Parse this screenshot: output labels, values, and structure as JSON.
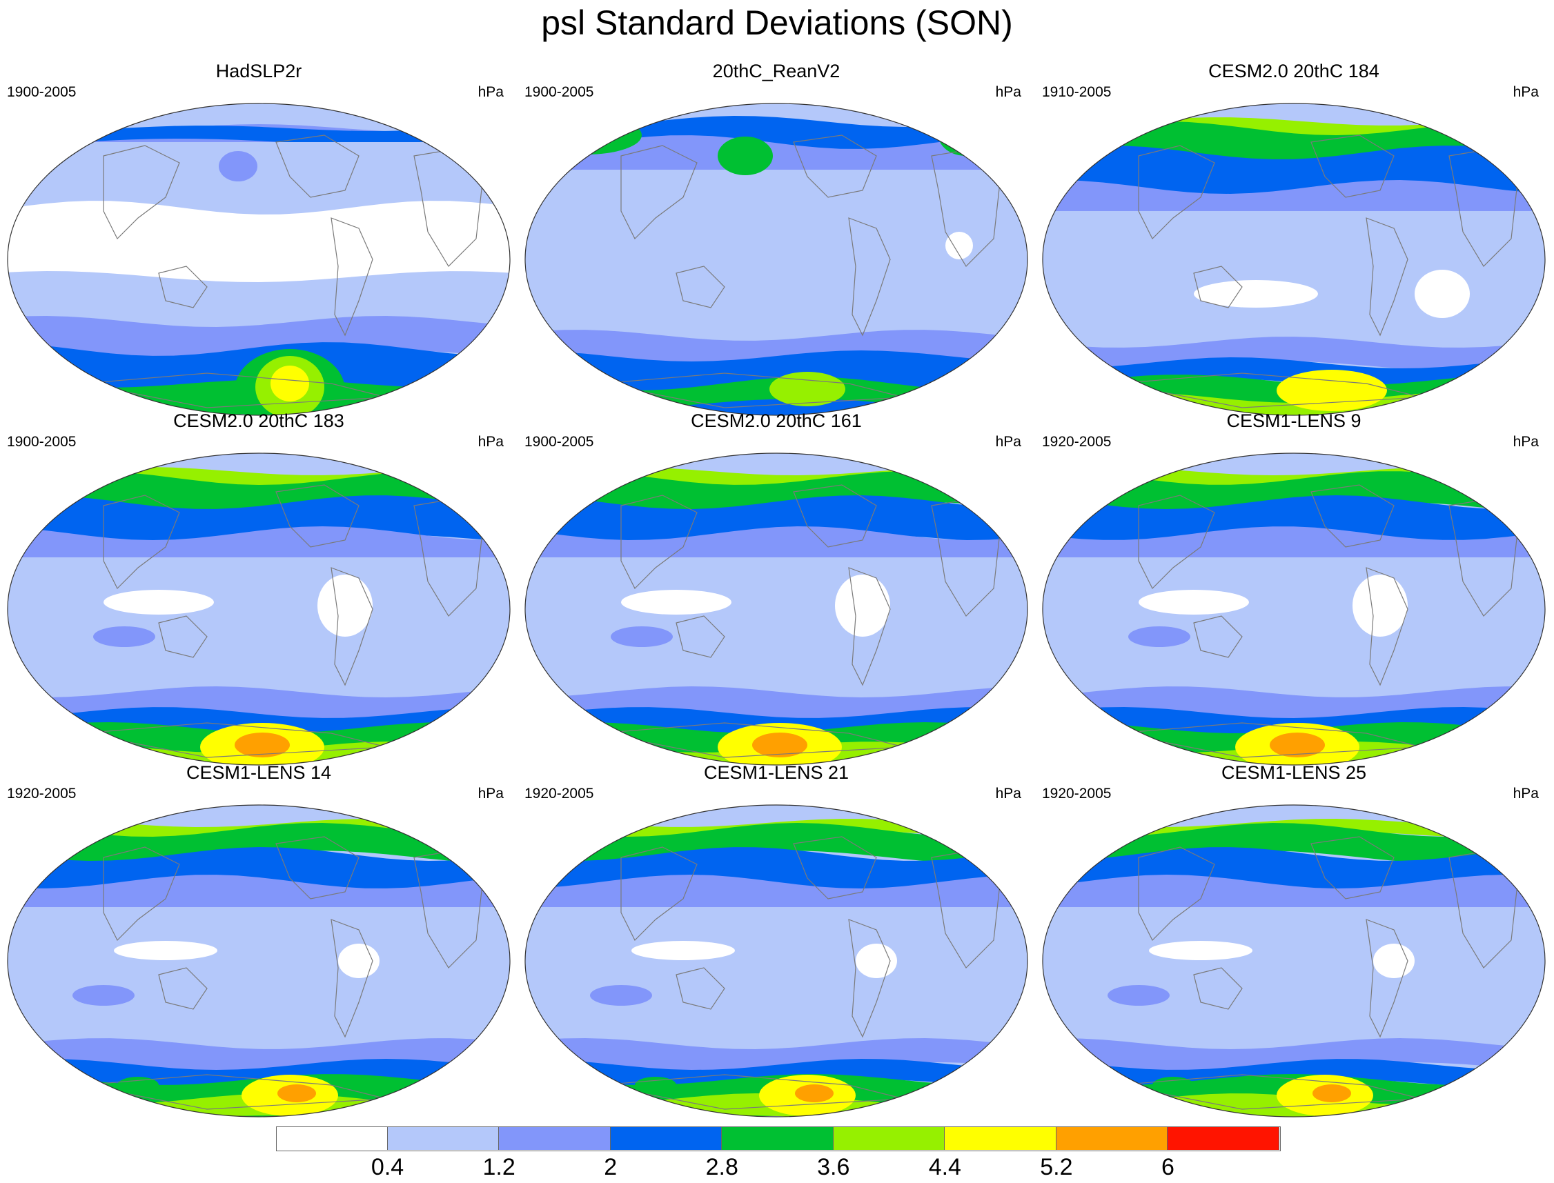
{
  "title": "psl Standard Deviations (SON)",
  "panels": [
    {
      "name": "HadSLP2r",
      "years": "1900-2005",
      "units": "hPa",
      "variant": 0
    },
    {
      "name": "20thC_ReanV2",
      "years": "1900-2005",
      "units": "hPa",
      "variant": 1
    },
    {
      "name": "CESM2.0 20thC 184",
      "years": "1910-2005",
      "units": "hPa",
      "variant": 2
    },
    {
      "name": "CESM2.0 20thC 183",
      "years": "1900-2005",
      "units": "hPa",
      "variant": 3
    },
    {
      "name": "CESM2.0 20thC 161",
      "years": "1900-2005",
      "units": "hPa",
      "variant": 3
    },
    {
      "name": "CESM1-LENS 9",
      "years": "1920-2005",
      "units": "hPa",
      "variant": 3
    },
    {
      "name": "CESM1-LENS 14",
      "years": "1920-2005",
      "units": "hPa",
      "variant": 4
    },
    {
      "name": "CESM1-LENS 21",
      "years": "1920-2005",
      "units": "hPa",
      "variant": 4
    },
    {
      "name": "CESM1-LENS 25",
      "years": "1920-2005",
      "units": "hPa",
      "variant": 4
    }
  ],
  "colorbar": {
    "labels": [
      "0.4",
      "1.2",
      "2",
      "2.8",
      "3.6",
      "4.4",
      "5.2",
      "6"
    ],
    "colors": [
      "#ffffff",
      "#b4c8fa",
      "#8296fa",
      "#0064f0",
      "#00c032",
      "#96f000",
      "#ffff00",
      "#ffa000",
      "#ff1400"
    ]
  }
}
